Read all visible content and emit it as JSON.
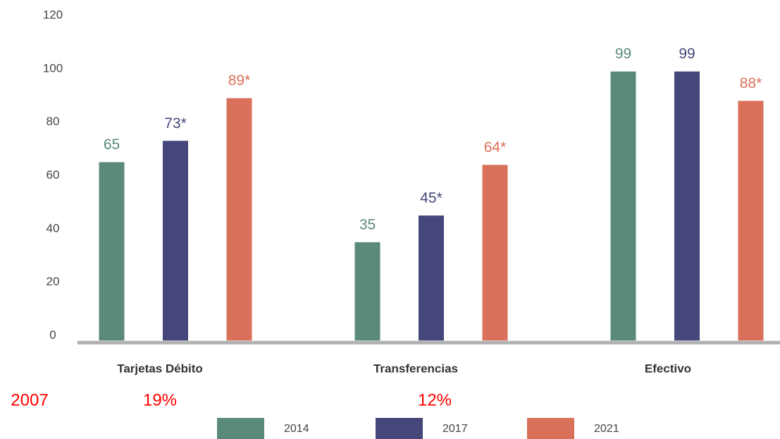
{
  "chart_data": {
    "type": "bar",
    "categories": [
      "Tarjetas Débito",
      "Transferencias",
      "Efectivo"
    ],
    "series": [
      {
        "name": "2014",
        "color": "#5b8a7d",
        "values": [
          65,
          35,
          99
        ],
        "value_labels": [
          "65",
          "35",
          "99"
        ]
      },
      {
        "name": "2017",
        "color": "#45467a",
        "values": [
          73,
          45,
          99
        ],
        "value_labels": [
          "73*",
          "45*",
          "99"
        ]
      },
      {
        "name": "2021",
        "color": "#d9705a",
        "values": [
          89,
          64,
          88
        ],
        "value_labels": [
          "89*",
          "64*",
          "88*"
        ]
      }
    ],
    "ylim": [
      0,
      120
    ],
    "yticks": [
      0,
      20,
      40,
      60,
      80,
      100,
      120
    ],
    "grid": false,
    "annotations": [
      "2007",
      "19%",
      "12%"
    ]
  }
}
